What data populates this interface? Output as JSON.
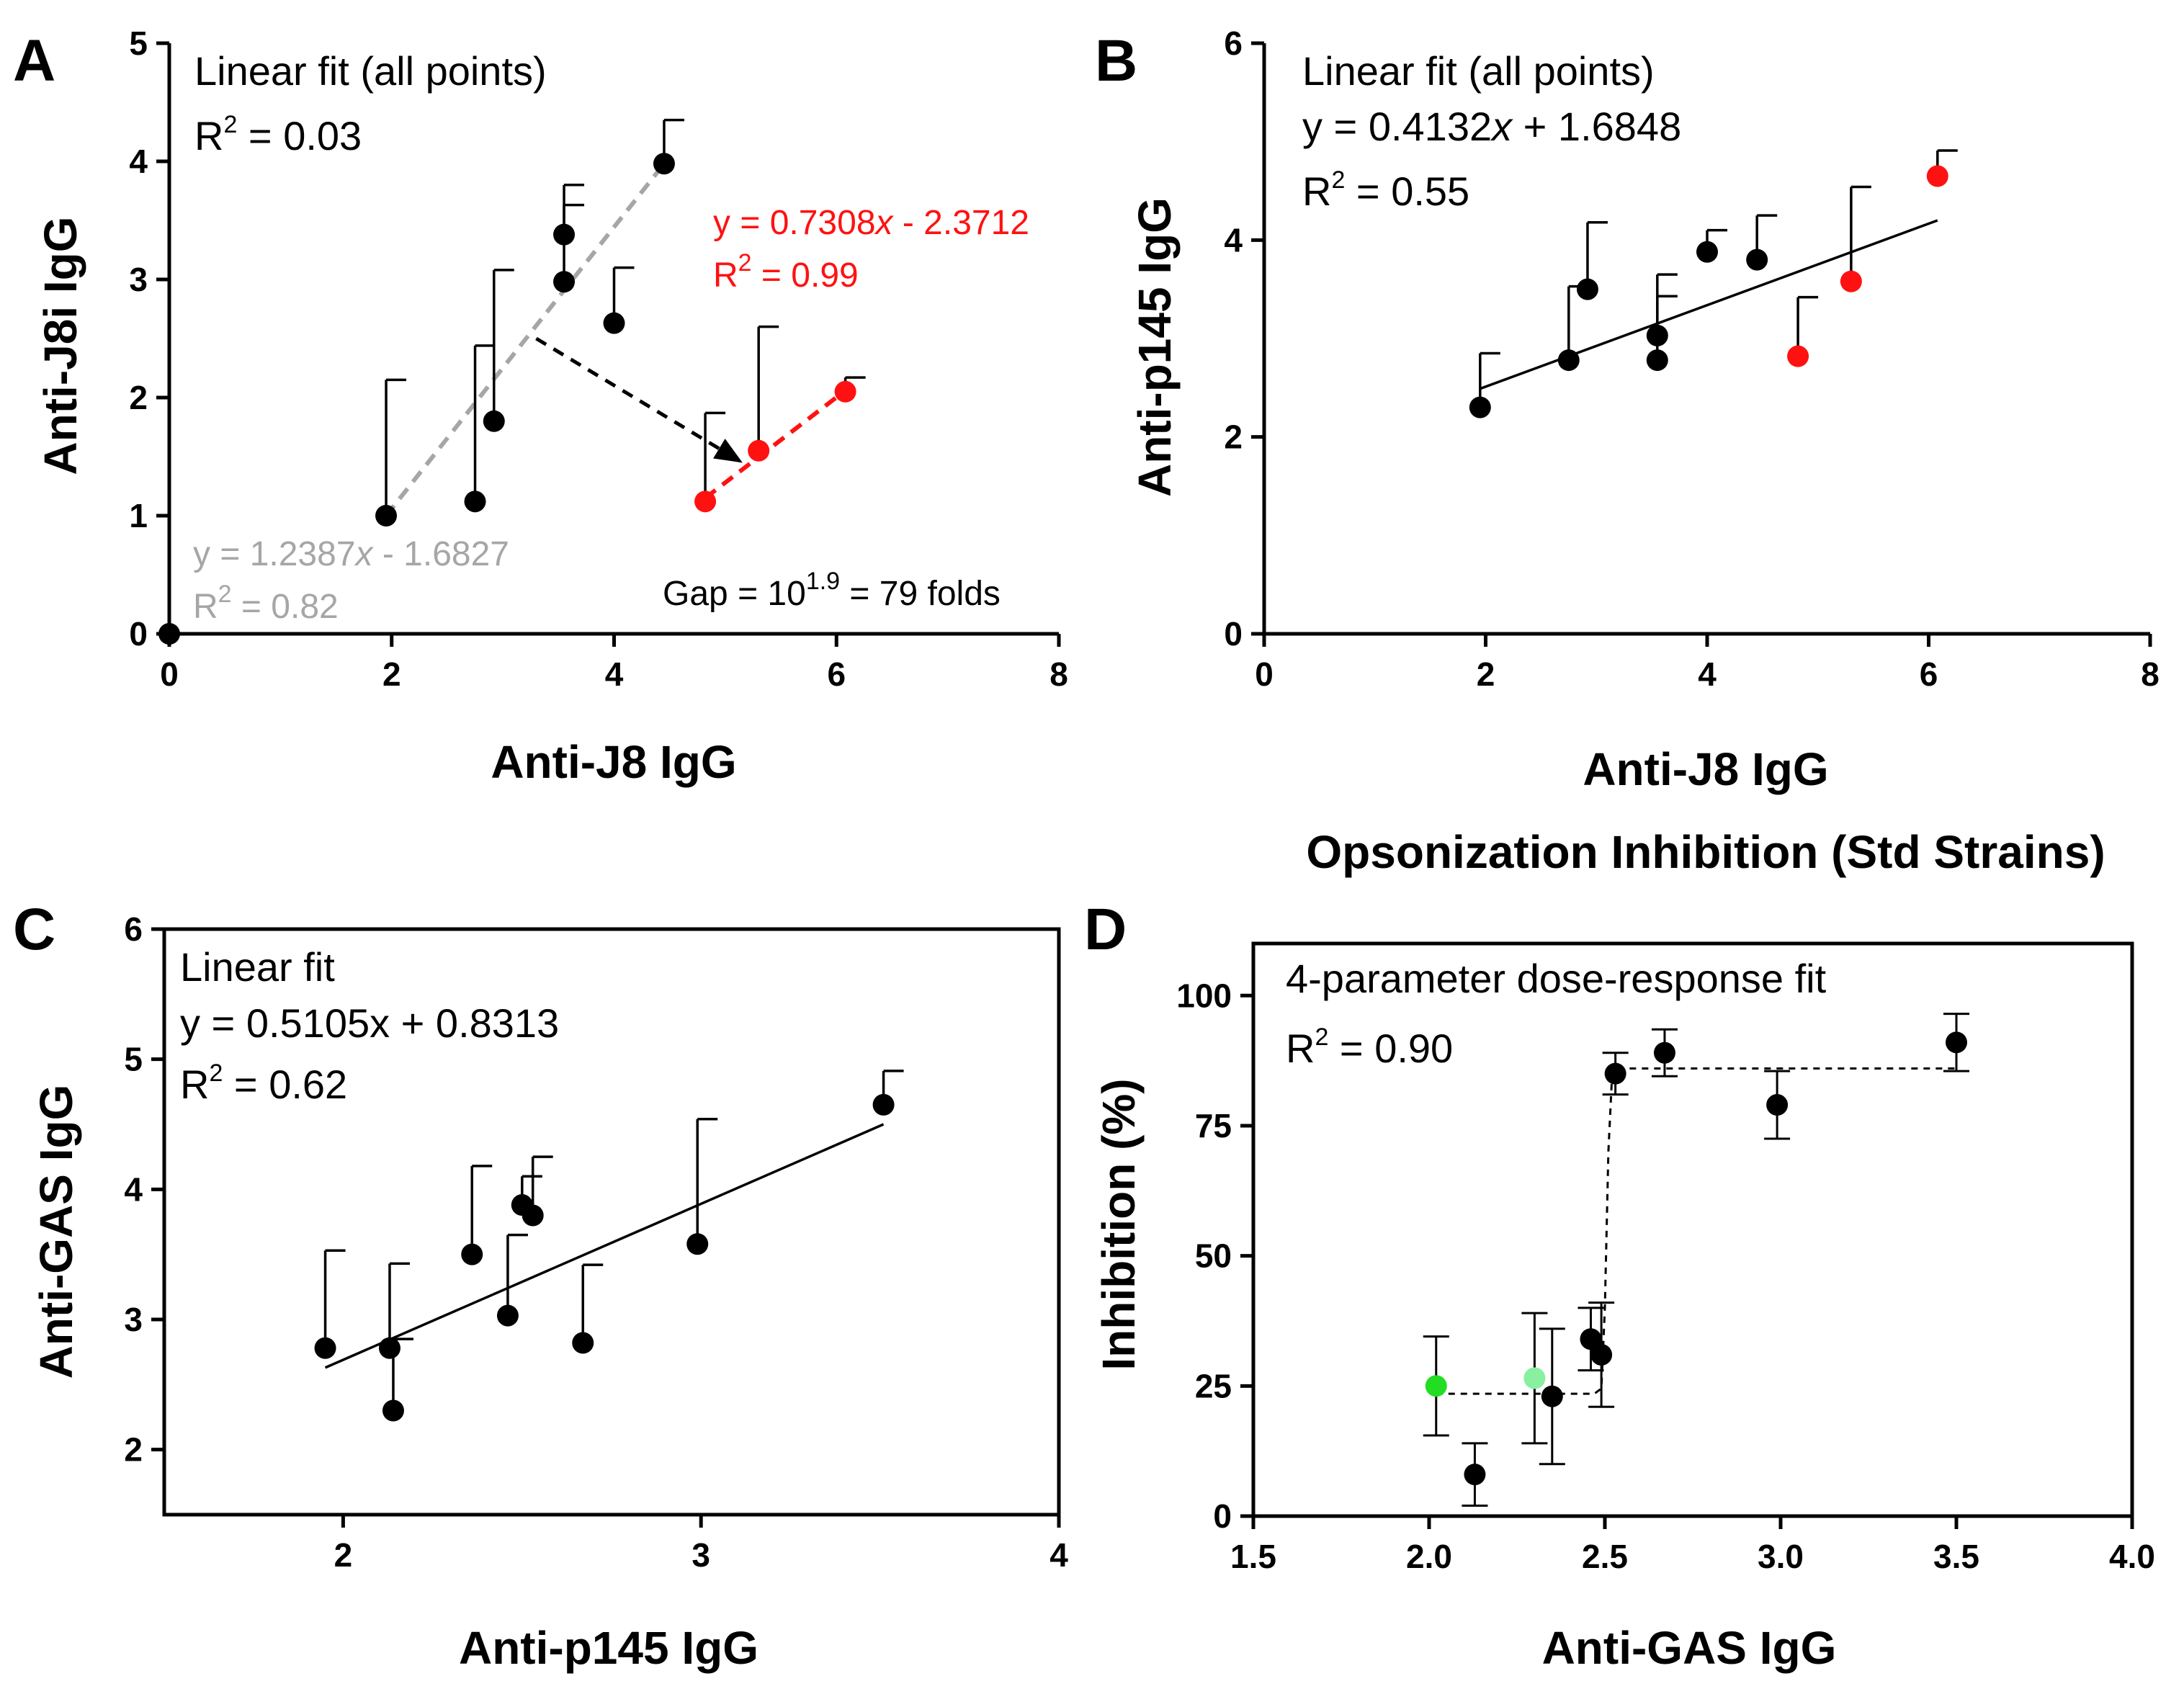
{
  "figure": {
    "shared_caption": "Opsonization Inhibition (Std Strains)"
  },
  "colors": {
    "black": "#000000",
    "red": "#ff1111",
    "gray": "#a6a6a6",
    "green": "#22dd22",
    "light_green": "#88f0a0"
  },
  "chart_data": [
    {
      "panel": "A",
      "type": "scatter",
      "xlabel": "Anti-J8 IgG",
      "ylabel": "Anti-J8i IgG",
      "xlim": [
        0,
        8
      ],
      "ylim": [
        0,
        5
      ],
      "xticks": [
        0,
        2,
        4,
        6,
        8
      ],
      "yticks": [
        0,
        1,
        2,
        3,
        4,
        5
      ],
      "annotations": {
        "overall_fit": "Linear fit (all points)",
        "overall_r2_prefix": "R",
        "overall_r2_sup": "2",
        "overall_r2_value": " = 0.03",
        "gray_eq_a": "y = 1.2387",
        "gray_eq_x": "x",
        "gray_eq_b": " - 1.6827",
        "gray_r2_prefix": "R",
        "gray_r2_sup": "2",
        "gray_r2_value": " = 0.82",
        "red_eq_a": "y = 0.7308",
        "red_eq_x": "x",
        "red_eq_b": " - 2.3712",
        "red_r2_prefix": "R",
        "red_r2_sup": "2",
        "red_r2_value": " = 0.99",
        "gap_a": "Gap = 10",
        "gap_sup": "1.9",
        "gap_b": " = 79 folds"
      },
      "series": [
        {
          "name": "black",
          "color": "#000000",
          "points": [
            {
              "x": 0,
              "y": 0,
              "err_up": 0
            },
            {
              "x": 1.95,
              "y": 1.0,
              "err_up": 1.15
            },
            {
              "x": 2.75,
              "y": 1.12,
              "err_up": 1.32
            },
            {
              "x": 2.92,
              "y": 1.8,
              "err_up": 1.28
            },
            {
              "x": 3.55,
              "y": 2.98,
              "err_up": 0.82
            },
            {
              "x": 3.55,
              "y": 3.38,
              "err_up": 0.25
            },
            {
              "x": 4.0,
              "y": 2.63,
              "err_up": 0.47
            },
            {
              "x": 4.45,
              "y": 3.98,
              "err_up": 0.37
            }
          ]
        },
        {
          "name": "red",
          "color": "#ff1111",
          "points": [
            {
              "x": 4.82,
              "y": 1.12,
              "err_up": 0.75
            },
            {
              "x": 5.3,
              "y": 1.55,
              "err_up": 1.05
            },
            {
              "x": 6.08,
              "y": 2.05,
              "err_up": 0.12
            }
          ]
        }
      ],
      "fits": [
        {
          "name": "gray-fit",
          "color": "#a6a6a6",
          "dashed": true,
          "x": [
            1.95,
            4.45
          ],
          "y": [
            1.0,
            3.98
          ]
        },
        {
          "name": "red-fit",
          "color": "#ff1111",
          "dashed": true,
          "x": [
            4.82,
            6.08
          ],
          "y": [
            1.15,
            2.06
          ]
        }
      ],
      "arrow": {
        "x1": 3.3,
        "y1": 2.5,
        "x2": 5.1,
        "y2": 1.48
      }
    },
    {
      "panel": "B",
      "type": "scatter",
      "xlabel": "Anti-J8 IgG",
      "ylabel": "Anti-p145 IgG",
      "xlim": [
        0,
        8
      ],
      "ylim": [
        0,
        6
      ],
      "xticks": [
        0,
        2,
        4,
        6,
        8
      ],
      "yticks": [
        0,
        2,
        4,
        6
      ],
      "annotations": {
        "fit_title": "Linear fit (all points)",
        "eq_a": "y = 0.4132",
        "eq_x": "x",
        "eq_b": " + 1.6848",
        "r2_prefix": "R",
        "r2_sup": "2",
        "r2_value": " = 0.55"
      },
      "series": [
        {
          "name": "black",
          "color": "#000000",
          "points": [
            {
              "x": 1.95,
              "y": 2.3,
              "err_up": 0.55
            },
            {
              "x": 2.75,
              "y": 2.78,
              "err_up": 0.75
            },
            {
              "x": 2.92,
              "y": 3.5,
              "err_up": 0.68
            },
            {
              "x": 3.55,
              "y": 2.78,
              "err_up": 0.65
            },
            {
              "x": 3.55,
              "y": 3.03,
              "err_up": 0.62
            },
            {
              "x": 4.0,
              "y": 3.88,
              "err_up": 0.22
            },
            {
              "x": 4.45,
              "y": 3.8,
              "err_up": 0.45
            }
          ]
        },
        {
          "name": "red",
          "color": "#ff1111",
          "points": [
            {
              "x": 4.82,
              "y": 2.82,
              "err_up": 0.6
            },
            {
              "x": 5.3,
              "y": 3.58,
              "err_up": 0.96
            },
            {
              "x": 6.08,
              "y": 4.65,
              "err_up": 0.26
            }
          ]
        }
      ],
      "fits": [
        {
          "name": "linear-fit",
          "color": "#000000",
          "dashed": false,
          "x": [
            1.95,
            6.08
          ],
          "y": [
            2.49,
            4.2
          ]
        }
      ]
    },
    {
      "panel": "C",
      "type": "scatter",
      "xlabel": "Anti-p145 IgG",
      "ylabel": "Anti-GAS IgG",
      "xlim": [
        1.5,
        4
      ],
      "ylim": [
        1.5,
        6
      ],
      "xticks": [
        2,
        3,
        4
      ],
      "yticks": [
        2,
        3,
        4,
        5,
        6
      ],
      "annotations": {
        "fit_title": "Linear fit",
        "eq": "y = 0.5105x + 0.8313",
        "r2_prefix": "R",
        "r2_sup": "2",
        "r2_value": " = 0.62"
      },
      "series": [
        {
          "name": "black",
          "color": "#000000",
          "points": [
            {
              "x": 1.95,
              "y": 2.78,
              "err_up": 0.75
            },
            {
              "x": 2.14,
              "y": 2.3,
              "err_up": 0.55
            },
            {
              "x": 2.13,
              "y": 2.78,
              "err_up": 0.65
            },
            {
              "x": 2.36,
              "y": 3.5,
              "err_up": 0.68
            },
            {
              "x": 2.46,
              "y": 3.03,
              "err_up": 0.62
            },
            {
              "x": 2.5,
              "y": 3.88,
              "err_up": 0.22
            },
            {
              "x": 2.53,
              "y": 3.8,
              "err_up": 0.45
            },
            {
              "x": 2.67,
              "y": 2.82,
              "err_up": 0.6
            },
            {
              "x": 2.99,
              "y": 3.58,
              "err_up": 0.96
            },
            {
              "x": 3.51,
              "y": 4.65,
              "err_up": 0.26
            }
          ]
        }
      ],
      "fits": [
        {
          "name": "linear-fit",
          "color": "#000000",
          "dashed": false,
          "x": [
            1.95,
            3.51
          ],
          "y": [
            2.63,
            4.5
          ]
        }
      ]
    },
    {
      "panel": "D",
      "type": "scatter",
      "xlabel": "Anti-GAS IgG",
      "ylabel": "Inhibition (%)",
      "xlim": [
        1.5,
        4.0
      ],
      "ylim": [
        0,
        110
      ],
      "xticks": [
        1.5,
        2.0,
        2.5,
        3.0,
        3.5,
        4.0
      ],
      "xtick_labels": [
        "1.5",
        "2.0",
        "2.5",
        "3.0",
        "3.5",
        "4.0"
      ],
      "yticks": [
        0,
        25,
        50,
        75,
        100
      ],
      "annotations": {
        "fit_title": "4-parameter dose-response fit",
        "r2_prefix": "R",
        "r2_sup": "2",
        "r2_value": " = 0.90"
      },
      "series": [
        {
          "name": "black",
          "color": "#000000",
          "points": [
            {
              "x": 2.13,
              "y": 8,
              "err": 6
            },
            {
              "x": 2.35,
              "y": 23,
              "err": 13
            },
            {
              "x": 2.46,
              "y": 34,
              "err": 6
            },
            {
              "x": 2.49,
              "y": 31,
              "err": 10
            },
            {
              "x": 2.53,
              "y": 85,
              "err": 4
            },
            {
              "x": 2.67,
              "y": 89,
              "err": 4.5
            },
            {
              "x": 2.99,
              "y": 79,
              "err": 6.5
            },
            {
              "x": 3.5,
              "y": 91,
              "err": 5.5
            }
          ]
        },
        {
          "name": "green",
          "color": "#22dd22",
          "points": [
            {
              "x": 2.02,
              "y": 25,
              "err": 9.5
            }
          ]
        },
        {
          "name": "light-green",
          "color": "#88f0a0",
          "points": [
            {
              "x": 2.3,
              "y": 26.5,
              "err": 12.5
            }
          ]
        }
      ],
      "fits": [
        {
          "name": "dose-response-fit",
          "color": "#000000",
          "dashed": true,
          "x": [
            2.02,
            2.47,
            2.49,
            2.5,
            2.51,
            2.52,
            2.53,
            3.5
          ],
          "y": [
            23.5,
            23.5,
            24.5,
            40,
            70,
            84,
            86,
            86
          ]
        }
      ]
    }
  ]
}
